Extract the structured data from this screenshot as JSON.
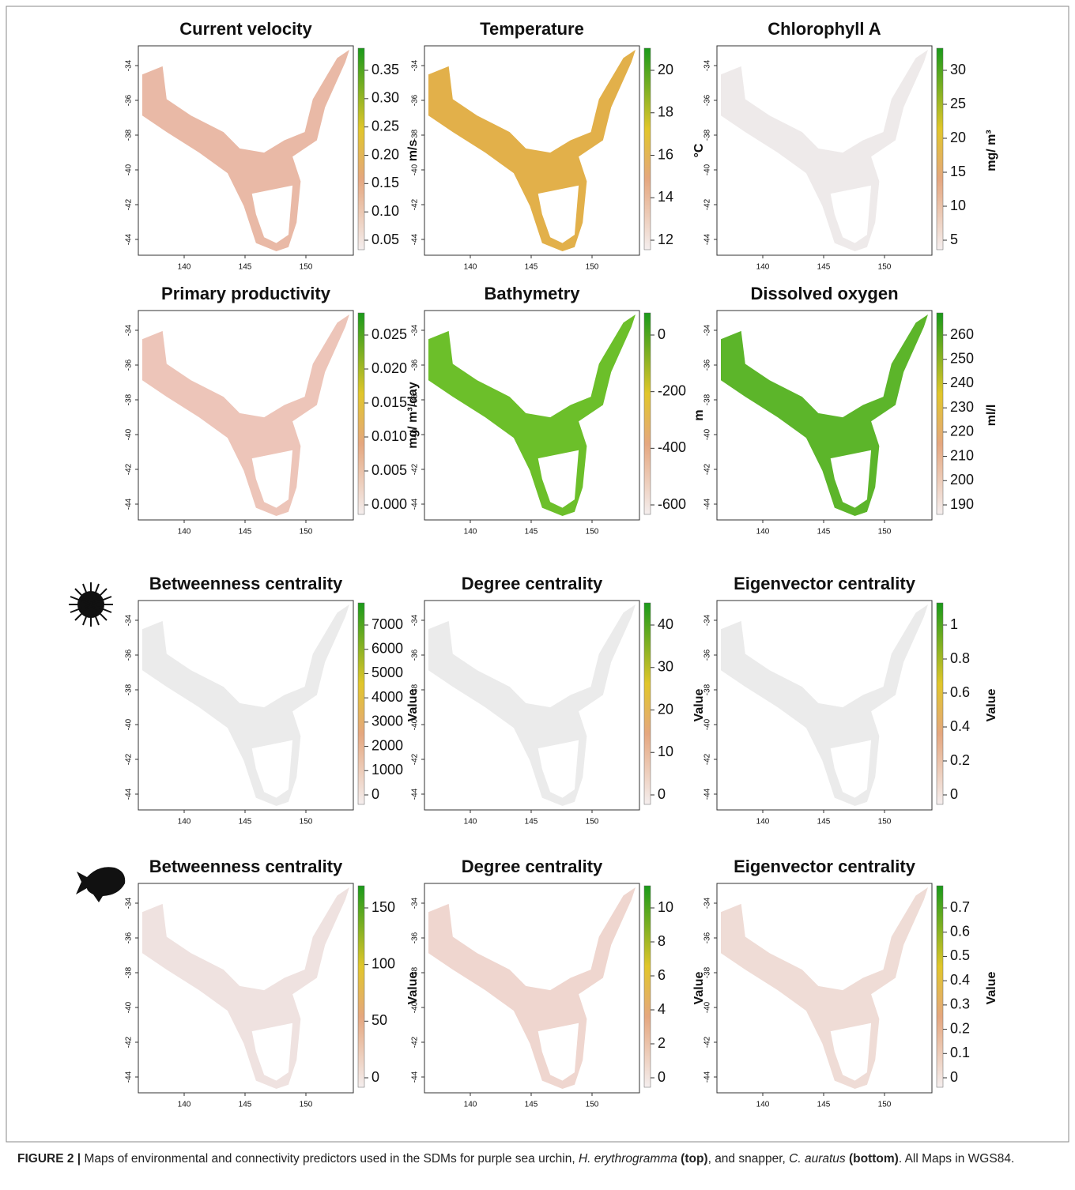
{
  "figure": {
    "lat_ticks": [
      "-34",
      "-36",
      "-38",
      "-40",
      "-42",
      "-44"
    ],
    "lon_ticks": [
      "140",
      "145",
      "150"
    ],
    "panels": [
      {
        "title": "Current  velocity",
        "unit": "m/s",
        "map_color": "#e9b9a6",
        "colorbar_ticks": [
          "0.05",
          "0.10",
          "0.15",
          "0.20",
          "0.25",
          "0.30",
          "0.35"
        ]
      },
      {
        "title": "Temperature",
        "unit": "°C",
        "map_color": "#e2b04a",
        "colorbar_ticks": [
          "12",
          "14",
          "16",
          "18",
          "20"
        ]
      },
      {
        "title": "Chlorophyll A",
        "unit": "mg/ m³",
        "map_color": "#eeeaea",
        "colorbar_ticks": [
          "5",
          "10",
          "15",
          "20",
          "25",
          "30"
        ]
      },
      {
        "title": "Primary productivity",
        "unit": "mg/ m³/day",
        "map_color": "#edc5b9",
        "colorbar_ticks": [
          "0.000",
          "0.005",
          "0.010",
          "0.015",
          "0.020",
          "0.025"
        ]
      },
      {
        "title": "Bathymetry",
        "unit": "m",
        "map_color": "#6cbf2a",
        "colorbar_ticks": [
          "-600",
          "-400",
          "-200",
          "0"
        ]
      },
      {
        "title": "Dissolved oxygen",
        "unit": "ml/l",
        "map_color": "#5cb52a",
        "colorbar_ticks": [
          "190",
          "200",
          "210",
          "220",
          "230",
          "240",
          "250",
          "260"
        ]
      },
      {
        "title": "Betweenness centrality",
        "unit": "Value",
        "map_color": "#ebebeb",
        "colorbar_ticks": [
          "0",
          "1000",
          "2000",
          "3000",
          "4000",
          "5000",
          "6000",
          "7000"
        ]
      },
      {
        "title": "Degree centrality",
        "unit": "Value",
        "map_color": "#ebebeb",
        "colorbar_ticks": [
          "0",
          "10",
          "20",
          "30",
          "40"
        ]
      },
      {
        "title": "Eigenvector centrality",
        "unit": "Value",
        "map_color": "#ebebeb",
        "colorbar_ticks": [
          "0",
          "0.2",
          "0.4",
          "0.6",
          "0.8",
          "1"
        ]
      },
      {
        "title": "Betweenness centrality",
        "unit": "Value",
        "map_color": "#efe2e0",
        "colorbar_ticks": [
          "0",
          "50",
          "100",
          "150"
        ]
      },
      {
        "title": "Degree centrality",
        "unit": "Value",
        "map_color": "#efd6cf",
        "colorbar_ticks": [
          "0",
          "2",
          "4",
          "6",
          "8",
          "10"
        ]
      },
      {
        "title": "Eigenvector centrality",
        "unit": "Value",
        "map_color": "#efdcd6",
        "colorbar_ticks": [
          "0",
          "0.1",
          "0.2",
          "0.3",
          "0.4",
          "0.5",
          "0.6",
          "0.7"
        ]
      }
    ],
    "caption": {
      "label": "FIGURE 2 |",
      "text1": " Maps of environmental and connectivity predictors used in the SDMs for purple sea urchin, ",
      "species1": "H. erythrogramma",
      "bold1": "(top)",
      "text2": ", and snapper, ",
      "species2": "C. auratus",
      "bold2": "(bottom)",
      "text3": ". All Maps in WGS84."
    }
  }
}
